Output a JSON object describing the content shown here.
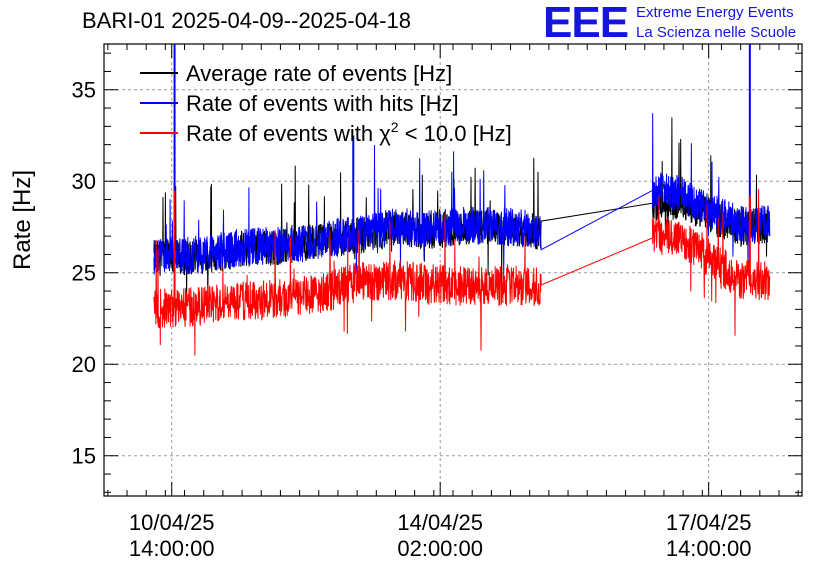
{
  "header": {
    "title": "BARI-01 2025-04-09--2025-04-18",
    "logo_text": "EEE",
    "logo_line1": "Extreme Energy Events",
    "logo_line2": "La Scienza nelle Scuole"
  },
  "colors": {
    "average": "#000000",
    "hits": "#0000ff",
    "chi2": "#ff0000",
    "logo": "#1515e0",
    "grid": "#9a9a9a"
  },
  "chart_data": {
    "type": "line",
    "title": "BARI-01 2025-04-09--2025-04-18",
    "xlabel": "",
    "ylabel": "Rate [Hz]",
    "x_unit": "days since 2025-04-09 00:00",
    "xlim": [
      0.7,
      9.8
    ],
    "ylim": [
      12.8,
      37.5
    ],
    "y_ticks": [
      15,
      20,
      25,
      30,
      35
    ],
    "x_ticks": [
      {
        "x": 1.583,
        "line1": "10/04/25",
        "line2": "14:00:00"
      },
      {
        "x": 5.083,
        "line1": "14/04/25",
        "line2": "02:00:00"
      },
      {
        "x": 8.583,
        "line1": "17/04/25",
        "line2": "14:00:00"
      }
    ],
    "grid": true,
    "legend": [
      {
        "key": "average",
        "label": "Average rate of events [Hz]"
      },
      {
        "key": "hits",
        "label": "Rate of events with hits [Hz]"
      },
      {
        "key": "chi2",
        "label_prefix": "Rate of events with ",
        "chi": "χ",
        "sup": "2",
        "label_suffix": " < 10.0 [Hz]"
      }
    ],
    "segments": [
      {
        "x_start": 1.35,
        "x_end": 6.4
      },
      {
        "x_start": 7.85,
        "x_end": 9.38
      }
    ],
    "series": [
      {
        "name": "Average rate of events [Hz]",
        "key": "average",
        "x": [
          1.35,
          2.0,
          2.5,
          3.0,
          3.5,
          4.0,
          4.5,
          5.0,
          5.5,
          6.0,
          6.4,
          7.85,
          8.2,
          8.6,
          9.0,
          9.38
        ],
        "y": [
          25.8,
          25.9,
          26.3,
          26.4,
          26.7,
          27.0,
          27.4,
          27.3,
          27.5,
          27.4,
          27.2,
          28.8,
          28.9,
          28.1,
          27.4,
          27.6
        ]
      },
      {
        "name": "Rate of events with hits [Hz]",
        "key": "hits",
        "x": [
          1.35,
          2.0,
          2.5,
          3.0,
          3.5,
          4.0,
          4.5,
          5.0,
          5.5,
          6.0,
          6.4,
          7.85,
          8.2,
          8.6,
          9.0,
          9.38
        ],
        "y": [
          25.9,
          26.0,
          26.4,
          26.5,
          26.8,
          27.1,
          27.5,
          27.4,
          27.6,
          27.5,
          27.3,
          29.5,
          29.3,
          28.4,
          27.6,
          27.7
        ]
      },
      {
        "name": "Rate of events with chi2 < 10.0 [Hz]",
        "key": "chi2",
        "x": [
          1.35,
          2.0,
          2.5,
          3.0,
          3.5,
          4.0,
          4.5,
          5.0,
          5.5,
          6.0,
          6.4,
          7.85,
          8.2,
          8.6,
          9.0,
          9.38
        ],
        "y": [
          23.0,
          23.2,
          23.5,
          23.6,
          23.8,
          24.5,
          24.6,
          24.4,
          24.2,
          24.3,
          24.2,
          26.9,
          27.0,
          25.8,
          24.6,
          24.6
        ]
      }
    ],
    "spikes": [
      {
        "key": "hits",
        "x": 1.62,
        "y": 38.0
      },
      {
        "key": "hits",
        "x": 3.95,
        "y": 32.5
      },
      {
        "key": "hits",
        "x": 9.12,
        "y": 38.0
      },
      {
        "key": "chi2",
        "x": 1.62,
        "y": 29.5
      },
      {
        "key": "chi2",
        "x": 9.12,
        "y": 29.2
      }
    ]
  }
}
